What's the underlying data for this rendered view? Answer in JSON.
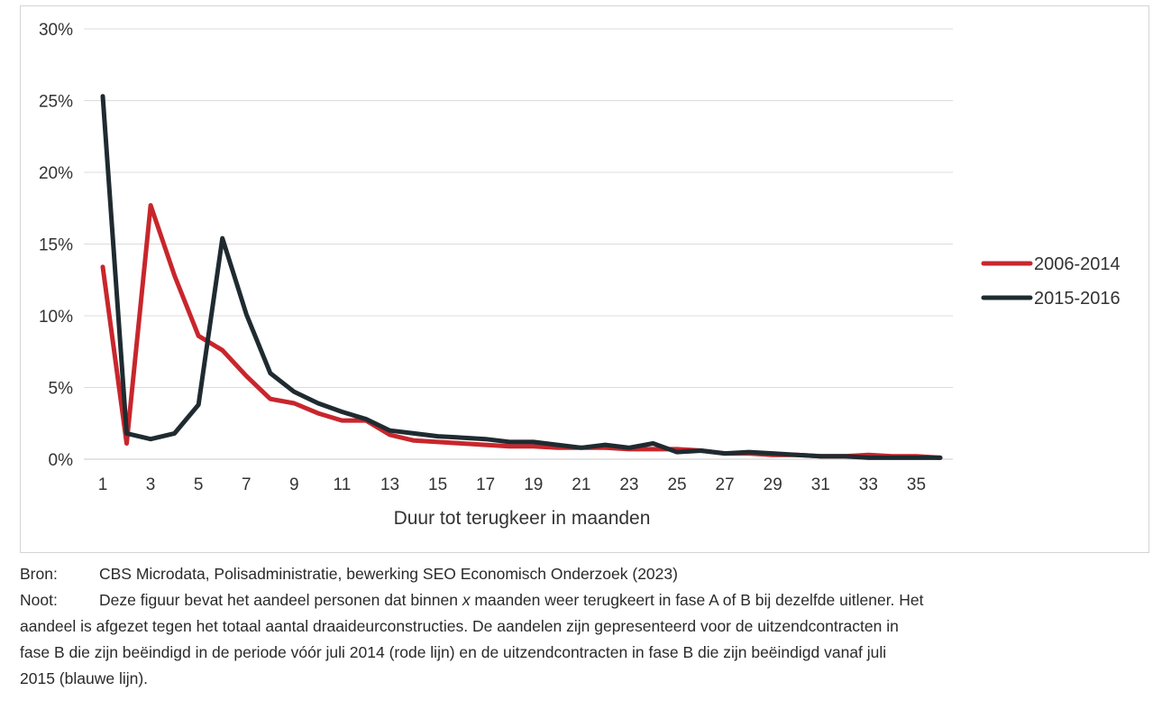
{
  "chart_data": {
    "type": "line",
    "title": "",
    "xlabel": "Duur tot terugkeer in maanden",
    "ylabel": "",
    "x": [
      1,
      2,
      3,
      4,
      5,
      6,
      7,
      8,
      9,
      10,
      11,
      12,
      13,
      14,
      15,
      16,
      17,
      18,
      19,
      20,
      21,
      22,
      23,
      24,
      25,
      26,
      27,
      28,
      29,
      30,
      31,
      32,
      33,
      34,
      35,
      36
    ],
    "x_tick_labels": [
      "1",
      "3",
      "5",
      "7",
      "9",
      "11",
      "13",
      "15",
      "17",
      "19",
      "21",
      "23",
      "25",
      "27",
      "29",
      "31",
      "33",
      "35"
    ],
    "x_tick_values": [
      1,
      3,
      5,
      7,
      9,
      11,
      13,
      15,
      17,
      19,
      21,
      23,
      25,
      27,
      29,
      31,
      33,
      35
    ],
    "y_tick_labels": [
      "0%",
      "5%",
      "10%",
      "15%",
      "20%",
      "25%",
      "30%"
    ],
    "y_tick_values": [
      0,
      5,
      10,
      15,
      20,
      25,
      30
    ],
    "ylim": [
      0,
      30
    ],
    "xlim": [
      1,
      36
    ],
    "grid": true,
    "legend_position": "right",
    "series": [
      {
        "name": "2006-2014",
        "color": "#c8262c",
        "values": [
          13.4,
          1.1,
          17.7,
          12.8,
          8.6,
          7.6,
          5.8,
          4.2,
          3.9,
          3.2,
          2.7,
          2.7,
          1.7,
          1.3,
          1.2,
          1.1,
          1.0,
          0.9,
          0.9,
          0.8,
          0.8,
          0.8,
          0.7,
          0.7,
          0.7,
          0.6,
          0.4,
          0.4,
          0.3,
          0.3,
          0.2,
          0.2,
          0.3,
          0.2,
          0.2,
          0.1
        ]
      },
      {
        "name": "2015-2016",
        "color": "#1f2b30",
        "values": [
          25.3,
          1.8,
          1.4,
          1.8,
          3.8,
          15.4,
          10.1,
          6.0,
          4.7,
          3.9,
          3.3,
          2.8,
          2.0,
          1.8,
          1.6,
          1.5,
          1.4,
          1.2,
          1.2,
          1.0,
          0.8,
          1.0,
          0.8,
          1.1,
          0.5,
          0.6,
          0.4,
          0.5,
          0.4,
          0.3,
          0.2,
          0.2,
          0.1,
          0.1,
          0.1,
          0.1
        ]
      }
    ]
  },
  "notes": {
    "source_key": "Bron:",
    "source_text": "CBS Microdata, Polisadministratie, bewerking SEO Economisch Onderzoek (2023)",
    "note_key": "Noot:",
    "note_text_before_x": "Deze figuur bevat het aandeel personen dat binnen ",
    "note_x": "x",
    "note_text_line1_rest": " maanden weer terugkeert in fase A of B bij dezelfde uitlener. Het",
    "note_line2": "aandeel is afgezet tegen het totaal aantal draaideurconstructies. De aandelen zijn gepresenteerd voor de uitzendcontracten in",
    "note_line3": "fase B die zijn beëindigd in de periode vóór juli 2014 (rode lijn) en de uitzendcontracten in fase B die zijn beëindigd vanaf juli",
    "note_line4": "2015 (blauwe lijn)."
  }
}
